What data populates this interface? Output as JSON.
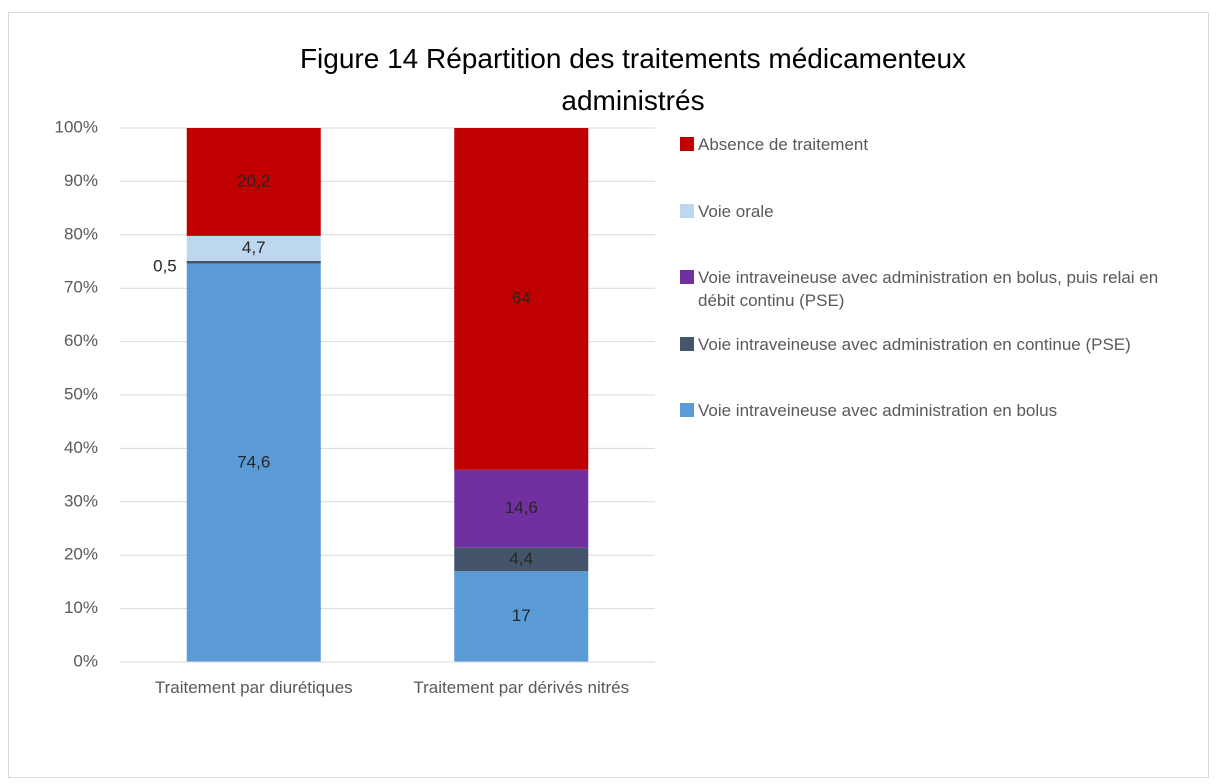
{
  "chart_data": {
    "type": "stacked_bar",
    "title": "Figure 14 Répartition des traitements médicamenteux administrés",
    "categories": [
      "Traitement par diurétiques",
      "Traitement par dérivés nitrés"
    ],
    "series": [
      {
        "name": "Voie intraveineuse avec administration en bolus",
        "color": "#5b9bd5",
        "values": [
          74.6,
          17
        ],
        "value_labels": [
          "74,6",
          "17"
        ]
      },
      {
        "name": "Voie intraveineuse avec administration en continue (PSE)",
        "color": "#44546a",
        "values": [
          0.5,
          4.4
        ],
        "value_labels": [
          "0,5",
          "4,4"
        ]
      },
      {
        "name": "Voie intraveineuse avec administration en bolus, puis relai en débit continu (PSE)",
        "color": "#7030a0",
        "values": [
          null,
          14.6
        ],
        "value_labels": [
          null,
          "14,6"
        ]
      },
      {
        "name": "Voie orale",
        "color": "#bdd7ee",
        "values": [
          4.7,
          null
        ],
        "value_labels": [
          "4,7",
          null
        ]
      },
      {
        "name": "Absence de traitement",
        "color": "#c00000",
        "values": [
          20.2,
          64
        ],
        "value_labels": [
          "20,2",
          "64"
        ]
      }
    ],
    "ylim": [
      0,
      100
    ],
    "yticks": [
      {
        "value": 0,
        "label": "0%"
      },
      {
        "value": 10,
        "label": "10%"
      },
      {
        "value": 20,
        "label": "20%"
      },
      {
        "value": 30,
        "label": "30%"
      },
      {
        "value": 40,
        "label": "40%"
      },
      {
        "value": 50,
        "label": "50%"
      },
      {
        "value": 60,
        "label": "60%"
      },
      {
        "value": 70,
        "label": "70%"
      },
      {
        "value": 80,
        "label": "80%"
      },
      {
        "value": 90,
        "label": "90%"
      },
      {
        "value": 100,
        "label": "100%"
      }
    ],
    "grid": true,
    "legend": "right"
  }
}
